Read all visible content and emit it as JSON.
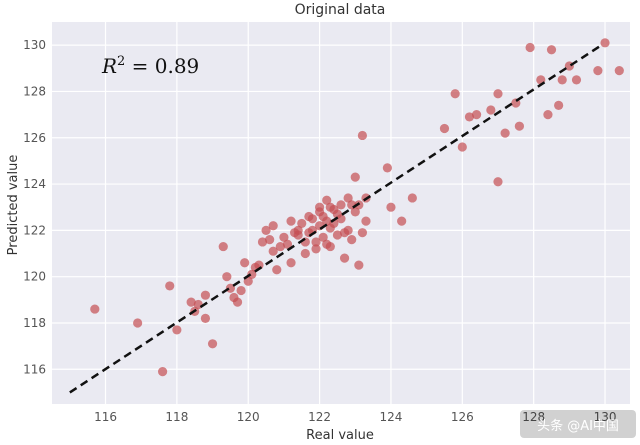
{
  "chart_data": {
    "type": "scatter",
    "title": "Original data",
    "xlabel": "Real value",
    "ylabel": "Predicted value",
    "xlim": [
      114.5,
      130.7
    ],
    "ylim": [
      114.5,
      131.0
    ],
    "xticks": [
      116,
      118,
      120,
      122,
      124,
      126,
      128,
      130
    ],
    "yticks": [
      116,
      118,
      120,
      122,
      124,
      126,
      128,
      130
    ],
    "grid": true,
    "point_color": "#c44e52",
    "line_color": "#111111",
    "annotation": {
      "base": "R",
      "exponent": "2",
      "rest": " = 0.89",
      "x": 115.9,
      "y": 128.8
    },
    "watermark": "头条 @AI中国",
    "fit_line": {
      "x": [
        115,
        129.9
      ],
      "y": [
        115,
        130
      ]
    },
    "points": {
      "x": [
        115.7,
        116.9,
        117.6,
        117.8,
        118.0,
        118.4,
        118.5,
        118.6,
        118.8,
        118.8,
        119.0,
        119.3,
        119.4,
        119.5,
        119.6,
        119.7,
        119.8,
        119.9,
        120.0,
        120.1,
        120.2,
        120.3,
        120.4,
        120.5,
        120.6,
        120.7,
        120.7,
        120.8,
        120.9,
        121.0,
        121.1,
        121.2,
        121.2,
        121.3,
        121.4,
        121.4,
        121.5,
        121.6,
        121.6,
        121.7,
        121.7,
        121.8,
        121.8,
        121.9,
        121.9,
        122.0,
        122.0,
        122.0,
        122.1,
        122.1,
        122.2,
        122.2,
        122.2,
        122.3,
        122.3,
        122.4,
        122.4,
        122.5,
        122.5,
        122.6,
        122.6,
        122.7,
        122.7,
        122.8,
        122.8,
        122.9,
        122.9,
        123.0,
        123.0,
        123.1,
        123.1,
        123.2,
        123.2,
        123.3,
        123.3,
        123.9,
        124.0,
        124.3,
        124.6,
        125.5,
        125.8,
        126.0,
        126.2,
        126.4,
        126.8,
        127.0,
        127.0,
        127.2,
        127.5,
        127.6,
        127.9,
        128.2,
        128.4,
        128.5,
        128.7,
        128.8,
        129.0,
        129.2,
        129.8,
        130.0,
        130.4,
        122.3
      ],
      "y": [
        118.6,
        118.0,
        115.9,
        119.6,
        117.7,
        118.9,
        118.5,
        118.8,
        119.2,
        118.2,
        117.1,
        121.3,
        120.0,
        119.5,
        119.1,
        118.9,
        119.4,
        120.6,
        119.8,
        120.1,
        120.4,
        120.5,
        121.5,
        122.0,
        121.6,
        121.1,
        122.2,
        120.3,
        121.3,
        121.7,
        121.4,
        122.4,
        120.6,
        121.9,
        122.0,
        121.8,
        122.3,
        121.0,
        121.5,
        122.6,
        121.9,
        122.5,
        122.0,
        121.5,
        121.2,
        122.8,
        123.0,
        122.2,
        122.6,
        121.7,
        123.3,
        122.4,
        121.4,
        123.0,
        122.1,
        122.9,
        122.3,
        122.7,
        121.8,
        123.1,
        122.5,
        120.8,
        121.9,
        123.4,
        122.0,
        123.1,
        121.6,
        124.3,
        122.8,
        123.1,
        120.5,
        126.1,
        121.9,
        123.4,
        122.4,
        124.7,
        123.0,
        122.4,
        123.4,
        126.4,
        127.9,
        125.6,
        126.9,
        127.0,
        127.2,
        127.9,
        124.1,
        126.2,
        127.5,
        126.5,
        129.9,
        128.5,
        127.0,
        129.8,
        127.4,
        128.5,
        129.1,
        128.5,
        128.9,
        130.1,
        128.9,
        121.3
      ]
    }
  }
}
